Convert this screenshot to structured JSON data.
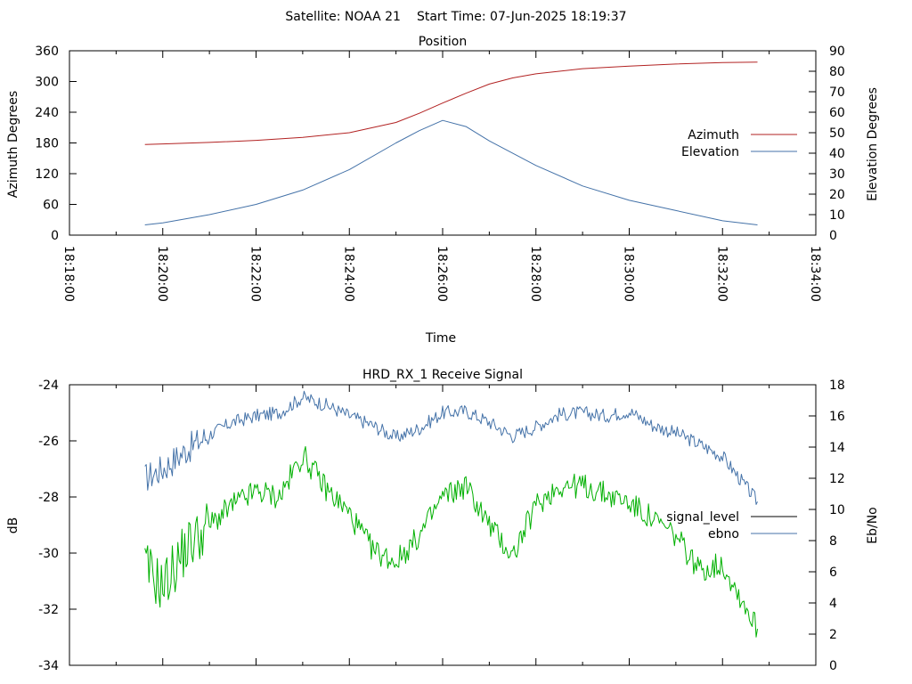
{
  "header": {
    "satellite": "Satellite: NOAA 21",
    "start_time": "Start Time: 07-Jun-2025 18:19:37"
  },
  "chart_data": [
    {
      "type": "line",
      "title": "Position",
      "xlabel": "Time",
      "ylabel": "Azimuth Degrees",
      "y2label": "Elevation Degrees",
      "xticks": [
        "18:18:00",
        "18:20:00",
        "18:22:00",
        "18:24:00",
        "18:26:00",
        "18:28:00",
        "18:30:00",
        "18:32:00",
        "18:34:00"
      ],
      "yticks": [
        "0",
        "60",
        "120",
        "180",
        "240",
        "300",
        "360"
      ],
      "y2ticks": [
        "0",
        "10",
        "20",
        "30",
        "40",
        "50",
        "60",
        "70",
        "80",
        "90"
      ],
      "ylim": [
        0,
        360
      ],
      "y2lim": [
        0,
        90
      ],
      "legend_position": "right",
      "series": [
        {
          "name": "Azimuth",
          "axis": "left",
          "color": "#b22222",
          "points": [
            [
              "18:19:37",
              177
            ],
            [
              "18:20:00",
              178
            ],
            [
              "18:21:00",
              181
            ],
            [
              "18:22:00",
              185
            ],
            [
              "18:23:00",
              191
            ],
            [
              "18:24:00",
              200
            ],
            [
              "18:25:00",
              220
            ],
            [
              "18:25:30",
              238
            ],
            [
              "18:26:00",
              258
            ],
            [
              "18:26:30",
              277
            ],
            [
              "18:27:00",
              295
            ],
            [
              "18:27:30",
              307
            ],
            [
              "18:28:00",
              315
            ],
            [
              "18:29:00",
              325
            ],
            [
              "18:30:00",
              330
            ],
            [
              "18:31:00",
              334
            ],
            [
              "18:32:00",
              337
            ],
            [
              "18:32:45",
              338
            ]
          ]
        },
        {
          "name": "Elevation",
          "axis": "right",
          "color": "#4472a8",
          "points": [
            [
              "18:19:37",
              5
            ],
            [
              "18:20:00",
              6
            ],
            [
              "18:21:00",
              10
            ],
            [
              "18:22:00",
              15
            ],
            [
              "18:23:00",
              22
            ],
            [
              "18:24:00",
              32
            ],
            [
              "18:25:00",
              45
            ],
            [
              "18:25:30",
              51
            ],
            [
              "18:26:00",
              56
            ],
            [
              "18:26:30",
              53
            ],
            [
              "18:27:00",
              46
            ],
            [
              "18:28:00",
              34
            ],
            [
              "18:29:00",
              24
            ],
            [
              "18:30:00",
              17
            ],
            [
              "18:31:00",
              12
            ],
            [
              "18:32:00",
              7
            ],
            [
              "18:32:45",
              5
            ]
          ]
        }
      ]
    },
    {
      "type": "line",
      "title": "HRD_RX_1 Receive Signal",
      "ylabel": "dB",
      "y2label": "Eb/No",
      "yticks": [
        "-24",
        "-26",
        "-28",
        "-30",
        "-32",
        "-34"
      ],
      "y2ticks": [
        "0",
        "2",
        "4",
        "6",
        "8",
        "10",
        "12",
        "14",
        "16",
        "18"
      ],
      "ylim": [
        -34,
        -24
      ],
      "y2lim": [
        0,
        18
      ],
      "legend_position": "right",
      "series": [
        {
          "name": "signal_level",
          "axis": "left",
          "color": "#00b000",
          "points": [
            [
              "18:19:37",
              -30.5
            ],
            [
              "18:20:00",
              -31.2
            ],
            [
              "18:20:30",
              -29.8
            ],
            [
              "18:21:00",
              -29.0
            ],
            [
              "18:21:30",
              -28.3
            ],
            [
              "18:22:00",
              -27.8
            ],
            [
              "18:22:30",
              -28.0
            ],
            [
              "18:23:00",
              -26.5
            ],
            [
              "18:23:30",
              -27.7
            ],
            [
              "18:24:00",
              -28.6
            ],
            [
              "18:24:30",
              -29.9
            ],
            [
              "18:25:00",
              -30.3
            ],
            [
              "18:25:30",
              -29.4
            ],
            [
              "18:26:00",
              -28.0
            ],
            [
              "18:26:30",
              -27.6
            ],
            [
              "18:27:00",
              -29.0
            ],
            [
              "18:27:30",
              -30.1
            ],
            [
              "18:28:00",
              -28.3
            ],
            [
              "18:28:30",
              -27.6
            ],
            [
              "18:29:00",
              -27.6
            ],
            [
              "18:29:30",
              -27.9
            ],
            [
              "18:30:00",
              -28.2
            ],
            [
              "18:30:30",
              -28.8
            ],
            [
              "18:31:00",
              -29.4
            ],
            [
              "18:31:30",
              -30.6
            ],
            [
              "18:32:00",
              -30.4
            ],
            [
              "18:32:45",
              -32.7
            ]
          ]
        },
        {
          "name": "ebno",
          "axis": "right",
          "color": "#4472a8",
          "points": [
            [
              "18:19:37",
              12.0
            ],
            [
              "18:20:00",
              12.6
            ],
            [
              "18:20:30",
              13.8
            ],
            [
              "18:21:00",
              14.8
            ],
            [
              "18:21:30",
              15.6
            ],
            [
              "18:22:00",
              16.0
            ],
            [
              "18:22:30",
              16.2
            ],
            [
              "18:23:00",
              17.2
            ],
            [
              "18:23:30",
              16.7
            ],
            [
              "18:24:00",
              16.0
            ],
            [
              "18:24:30",
              15.4
            ],
            [
              "18:25:00",
              14.6
            ],
            [
              "18:25:30",
              15.2
            ],
            [
              "18:26:00",
              16.2
            ],
            [
              "18:26:30",
              16.3
            ],
            [
              "18:27:00",
              15.6
            ],
            [
              "18:27:30",
              14.7
            ],
            [
              "18:28:00",
              15.3
            ],
            [
              "18:28:30",
              16.1
            ],
            [
              "18:29:00",
              16.2
            ],
            [
              "18:29:30",
              16.0
            ],
            [
              "18:30:00",
              16.3
            ],
            [
              "18:30:30",
              15.4
            ],
            [
              "18:31:00",
              14.9
            ],
            [
              "18:31:30",
              14.2
            ],
            [
              "18:32:00",
              13.4
            ],
            [
              "18:32:45",
              10.5
            ]
          ]
        }
      ]
    }
  ]
}
